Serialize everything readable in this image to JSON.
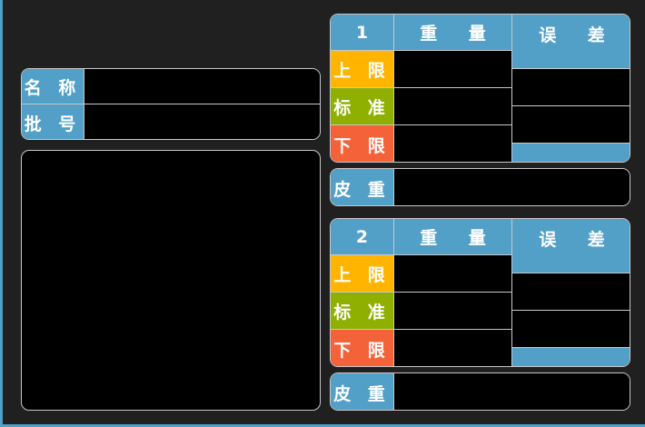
{
  "info": {
    "name_label": "名 称",
    "batch_label": "批 号",
    "name_value": "",
    "batch_value": ""
  },
  "colors": {
    "header": "#52a0c8",
    "upper": "#ffb400",
    "standard": "#8fb000",
    "lower": "#f4623a"
  },
  "scales": [
    {
      "index": "1",
      "weight_header": "重 量",
      "error_header": "误 差",
      "upper_label": "上 限",
      "standard_label": "标 准",
      "lower_label": "下 限",
      "tare_label": "皮 重"
    },
    {
      "index": "2",
      "weight_header": "重 量",
      "error_header": "误 差",
      "upper_label": "上 限",
      "standard_label": "标 准",
      "lower_label": "下 限",
      "tare_label": "皮 重"
    }
  ]
}
